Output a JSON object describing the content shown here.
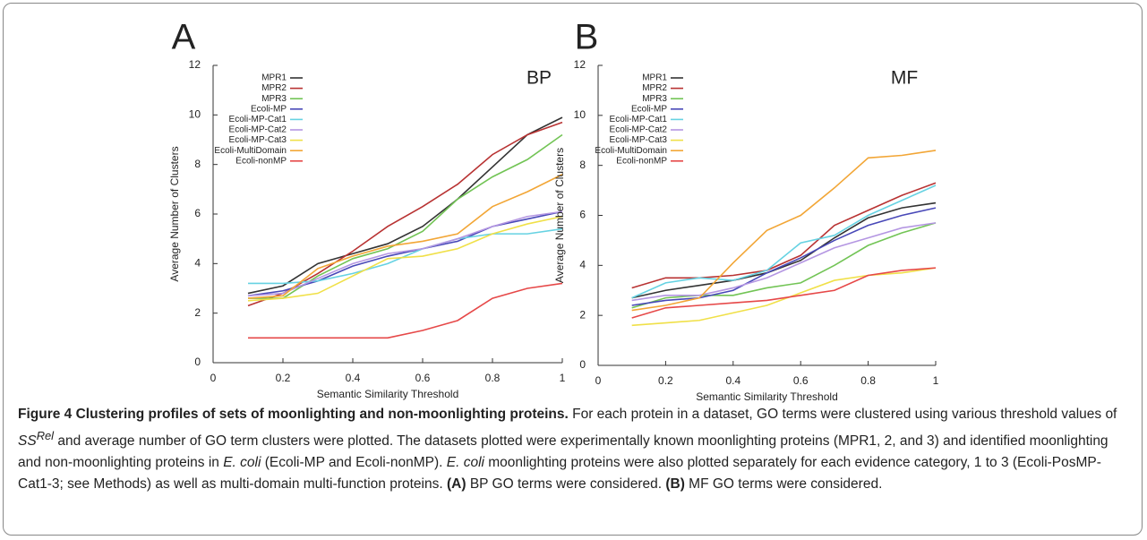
{
  "chart_data": [
    {
      "type": "line",
      "panel_label": "A",
      "annotation": "BP",
      "xlabel": "Semantic Similarity Threshold",
      "ylabel": "Average Number of Clusters",
      "x": [
        0.1,
        0.2,
        0.3,
        0.4,
        0.5,
        0.6,
        0.7,
        0.8,
        0.9,
        1
      ],
      "xlim": [
        0,
        1
      ],
      "ylim": [
        0,
        12
      ],
      "xticks": [
        0,
        0.2,
        0.4,
        0.6,
        0.8,
        1
      ],
      "yticks": [
        0,
        2,
        4,
        6,
        8,
        10,
        12
      ],
      "grid": false,
      "legend": "upper left",
      "series": [
        {
          "name": "MPR1",
          "color": "#333333",
          "values": [
            2.8,
            3.1,
            4.0,
            4.4,
            4.8,
            5.5,
            6.6,
            7.9,
            9.2,
            9.9
          ]
        },
        {
          "name": "MPR2",
          "color": "#b83232",
          "values": [
            2.3,
            2.8,
            3.6,
            4.5,
            5.5,
            6.3,
            7.2,
            8.4,
            9.2,
            9.7
          ]
        },
        {
          "name": "MPR3",
          "color": "#72c455",
          "values": [
            2.6,
            2.6,
            3.5,
            4.2,
            4.6,
            5.3,
            6.6,
            7.5,
            8.2,
            9.2
          ]
        },
        {
          "name": "Ecoli-MP",
          "color": "#4848b8",
          "values": [
            2.7,
            2.9,
            3.3,
            3.9,
            4.3,
            4.6,
            4.9,
            5.5,
            5.8,
            6.1
          ]
        },
        {
          "name": "Ecoli-MP-Cat1",
          "color": "#66d2e2",
          "values": [
            3.2,
            3.2,
            3.3,
            3.6,
            4.0,
            4.6,
            5.0,
            5.2,
            5.2,
            5.4
          ]
        },
        {
          "name": "Ecoli-MP-Cat2",
          "color": "#b496e2",
          "values": [
            2.7,
            2.8,
            3.4,
            4.0,
            4.4,
            4.6,
            5.0,
            5.5,
            5.9,
            6.1
          ]
        },
        {
          "name": "Ecoli-MP-Cat3",
          "color": "#f0e048",
          "values": [
            2.5,
            2.6,
            2.8,
            3.5,
            4.2,
            4.3,
            4.6,
            5.2,
            5.6,
            5.9
          ]
        },
        {
          "name": "Ecoli-MultiDomain",
          "color": "#f2a636",
          "values": [
            2.6,
            2.7,
            3.8,
            4.3,
            4.7,
            4.9,
            5.2,
            6.3,
            6.9,
            7.6
          ]
        },
        {
          "name": "Ecoli-nonMP",
          "color": "#e64848",
          "values": [
            1.0,
            1.0,
            1.0,
            1.0,
            1.0,
            1.3,
            1.7,
            2.6,
            3.0,
            3.2
          ]
        }
      ]
    },
    {
      "type": "line",
      "panel_label": "B",
      "annotation": "MF",
      "xlabel": "Semantic Similarity Threshold",
      "ylabel": "Average Number of Clusters",
      "x": [
        0.1,
        0.2,
        0.3,
        0.4,
        0.5,
        0.6,
        0.7,
        0.8,
        0.9,
        1
      ],
      "xlim": [
        0,
        1
      ],
      "ylim": [
        0,
        12
      ],
      "xticks": [
        0,
        0.2,
        0.4,
        0.6,
        0.8,
        1
      ],
      "yticks": [
        0,
        2,
        4,
        6,
        8,
        10,
        12
      ],
      "grid": false,
      "legend": "upper left",
      "series": [
        {
          "name": "MPR1",
          "color": "#333333",
          "values": [
            2.7,
            3.0,
            3.2,
            3.4,
            3.7,
            4.2,
            5.1,
            5.9,
            6.3,
            6.5
          ]
        },
        {
          "name": "MPR2",
          "color": "#b83232",
          "values": [
            3.1,
            3.5,
            3.5,
            3.6,
            3.8,
            4.4,
            5.6,
            6.2,
            6.8,
            7.3
          ]
        },
        {
          "name": "MPR3",
          "color": "#72c455",
          "values": [
            2.3,
            2.7,
            2.8,
            2.8,
            3.1,
            3.3,
            4.0,
            4.8,
            5.3,
            5.7
          ]
        },
        {
          "name": "Ecoli-MP",
          "color": "#4848b8",
          "values": [
            2.4,
            2.6,
            2.7,
            3.0,
            3.7,
            4.3,
            5.0,
            5.6,
            6.0,
            6.3
          ]
        },
        {
          "name": "Ecoli-MP-Cat1",
          "color": "#66d2e2",
          "values": [
            2.7,
            3.3,
            3.5,
            3.4,
            3.8,
            4.9,
            5.2,
            6.0,
            6.6,
            7.2
          ]
        },
        {
          "name": "Ecoli-MP-Cat2",
          "color": "#b496e2",
          "values": [
            2.6,
            2.8,
            2.8,
            3.1,
            3.5,
            4.1,
            4.7,
            5.1,
            5.5,
            5.7
          ]
        },
        {
          "name": "Ecoli-MP-Cat3",
          "color": "#f0e048",
          "values": [
            1.6,
            1.7,
            1.8,
            2.1,
            2.4,
            2.9,
            3.4,
            3.6,
            3.7,
            3.9
          ]
        },
        {
          "name": "Ecoli-MultiDomain",
          "color": "#f2a636",
          "values": [
            2.2,
            2.4,
            2.7,
            4.1,
            5.4,
            6.0,
            7.1,
            8.3,
            8.4,
            8.6
          ]
        },
        {
          "name": "Ecoli-nonMP",
          "color": "#e64848",
          "values": [
            1.9,
            2.3,
            2.4,
            2.5,
            2.6,
            2.8,
            3.0,
            3.6,
            3.8,
            3.9
          ]
        }
      ]
    }
  ],
  "caption": [
    "Figure 4 Clustering profiles of sets of moonlighting and non-moonlighting proteins.",
    " For each protein in a dataset, GO terms were clustered using various threshold values of ",
    "SS",
    "Rel",
    " and average number of GO term clusters were plotted. The datasets plotted were experimentally known moonlighting proteins (MPR1, 2, and 3) and identified moonlighting and non-moonlighting proteins in ",
    "E. coli",
    " (Ecoli-MP and Ecoli-nonMP). ",
    "E. coli",
    " moonlighting proteins were also plotted separately for each evidence category, 1 to 3 (Ecoli-PosMP-Cat1-3; see Methods) as well as multi-domain multi-function proteins. ",
    "(A)",
    " BP GO terms were considered. ",
    "(B)",
    " MF GO terms were considered."
  ]
}
